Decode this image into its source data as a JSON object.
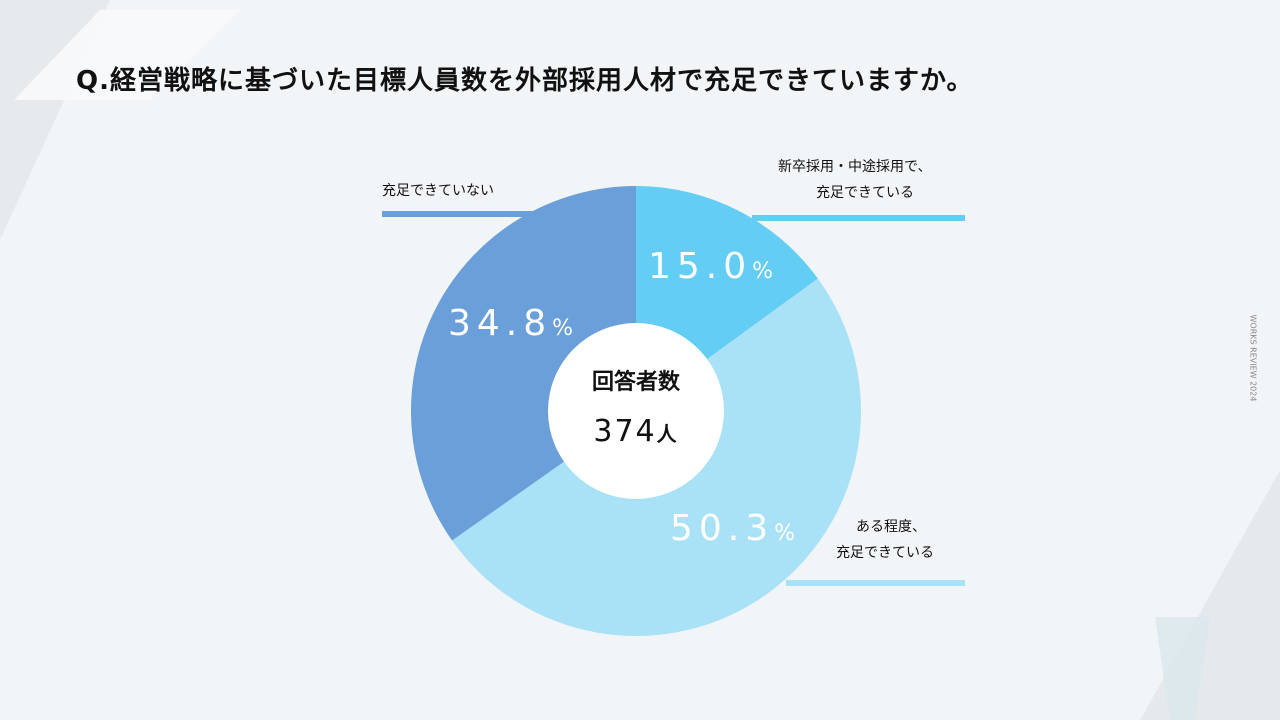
{
  "title": "Q.経営戦略に基づいた目標人員数を外部採用人材で充足できていますか。",
  "side_label": "WORKS REVIEW 2024",
  "center": {
    "label": "回答者数",
    "value": "374",
    "unit": "人"
  },
  "colors": {
    "background": "#f1f5f7",
    "fully": "#64cdf4",
    "somewhat": "#a9e1f6",
    "not": "#6a9fd9",
    "center": "#ffffff",
    "pct_text": "#ffffff"
  },
  "category_labels": {
    "fully": [
      "新卒採用・中途採用で、",
      "充足できている"
    ],
    "somewhat": [
      "ある程度、",
      "充足できている"
    ],
    "not": [
      "充足できていない"
    ]
  },
  "chart_data": {
    "type": "pie",
    "donut": true,
    "start_angle": "12 o'clock",
    "direction": "clockwise",
    "slices": [
      {
        "key": "fully",
        "label": "新卒採用・中途採用で、充足できている",
        "value": 15.0,
        "display": "15.0"
      },
      {
        "key": "somewhat",
        "label": "ある程度、充足できている",
        "value": 50.3,
        "display": "50.3"
      },
      {
        "key": "not",
        "label": "充足できていない",
        "value": 34.8,
        "display": "34.8"
      }
    ],
    "unit": "%"
  }
}
